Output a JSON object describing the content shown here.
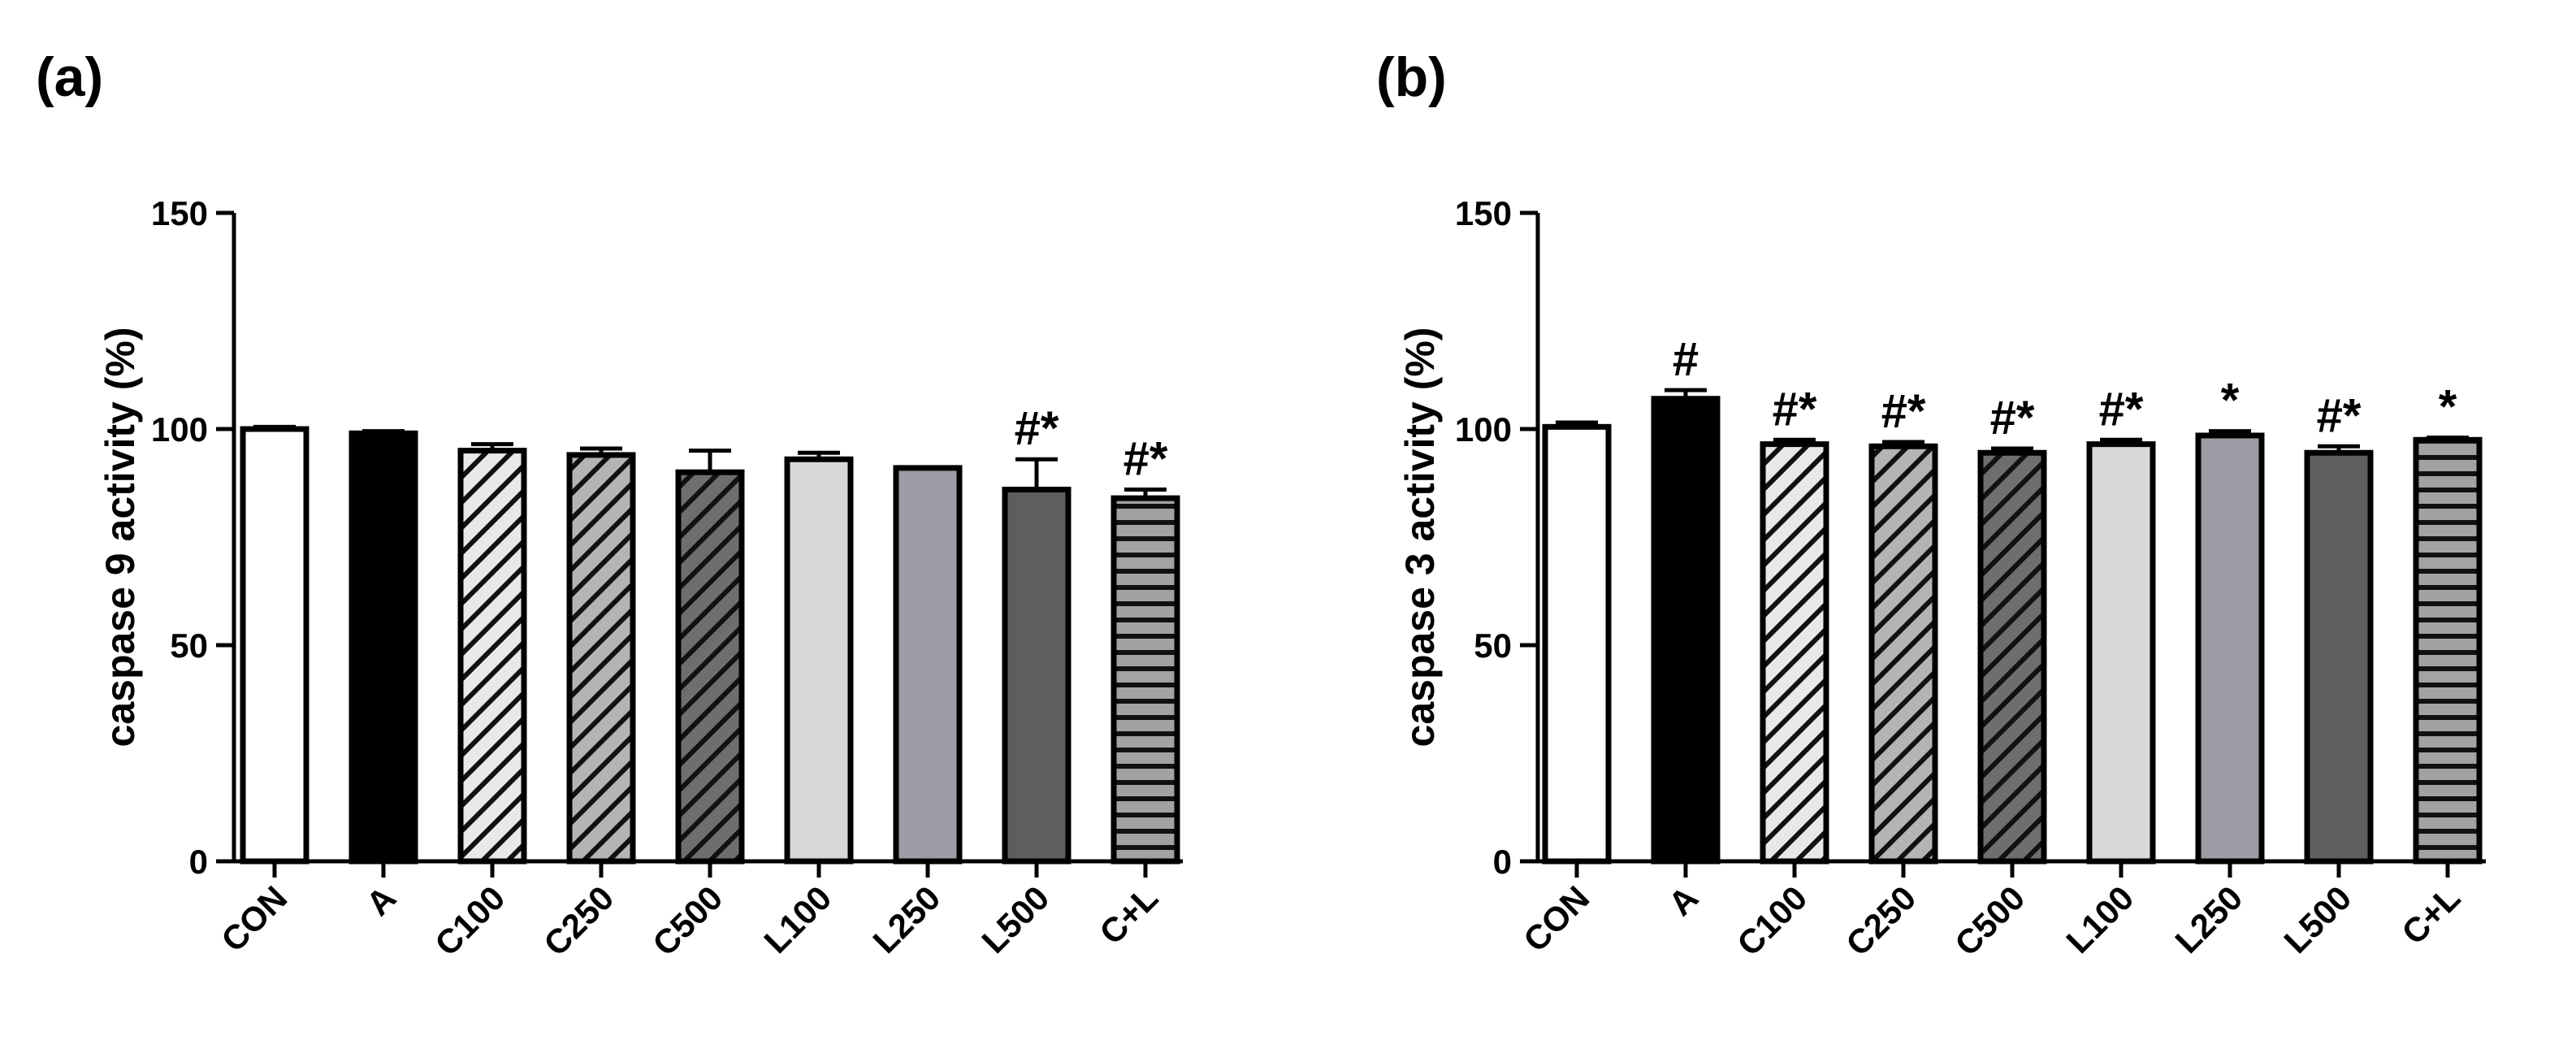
{
  "chart_data": [
    {
      "type": "bar",
      "panel_label": "(a)",
      "title": "",
      "xlabel": "",
      "ylabel": "caspase 9 activity (%)",
      "ylim": [
        0,
        150
      ],
      "yticks": [
        0,
        50,
        100,
        150
      ],
      "grid": false,
      "categories": [
        "CON",
        "A",
        "C100",
        "C250",
        "C500",
        "L100",
        "L250",
        "L500",
        "C+L"
      ],
      "values": [
        100,
        99,
        95,
        94,
        90,
        93,
        91,
        86,
        84
      ],
      "errors": [
        0.5,
        0.5,
        1.5,
        1.5,
        5,
        1.5,
        0,
        7,
        2
      ],
      "annotations": [
        "",
        "",
        "",
        "",
        "",
        "",
        "",
        "#*",
        "#*"
      ],
      "colors": [
        "#ffffff",
        "#000000",
        "#e8e8e8",
        "#b4b4b4",
        "#6e6e6e",
        "#d8d8d8",
        "#9c9ca4",
        "#5e5e5e",
        "#a2a2a2"
      ],
      "patterns": [
        "none",
        "none",
        "diag",
        "diag",
        "diag",
        "none",
        "none",
        "none",
        "horiz"
      ]
    },
    {
      "type": "bar",
      "panel_label": "(b)",
      "title": "",
      "xlabel": "",
      "ylabel": "caspase 3 activity (%)",
      "ylim": [
        0,
        150
      ],
      "yticks": [
        0,
        50,
        100,
        150
      ],
      "grid": false,
      "categories": [
        "CON",
        "A",
        "C100",
        "C250",
        "C500",
        "L100",
        "L250",
        "L500",
        "C+L"
      ],
      "values": [
        100.5,
        107,
        96.5,
        96,
        94.5,
        96.5,
        98.5,
        94.5,
        97.5
      ],
      "errors": [
        1,
        2,
        1,
        1,
        1,
        1,
        1,
        1.5,
        0.5
      ],
      "annotations": [
        "",
        "#",
        "#*",
        "#*",
        "#*",
        "#*",
        "*",
        "#*",
        "*"
      ],
      "colors": [
        "#ffffff",
        "#000000",
        "#e8e8e8",
        "#b4b4b4",
        "#6e6e6e",
        "#d8d8d8",
        "#9c9ca4",
        "#5e5e5e",
        "#a2a2a2"
      ],
      "patterns": [
        "none",
        "none",
        "diag",
        "diag",
        "diag",
        "none",
        "none",
        "none",
        "horiz"
      ]
    }
  ]
}
